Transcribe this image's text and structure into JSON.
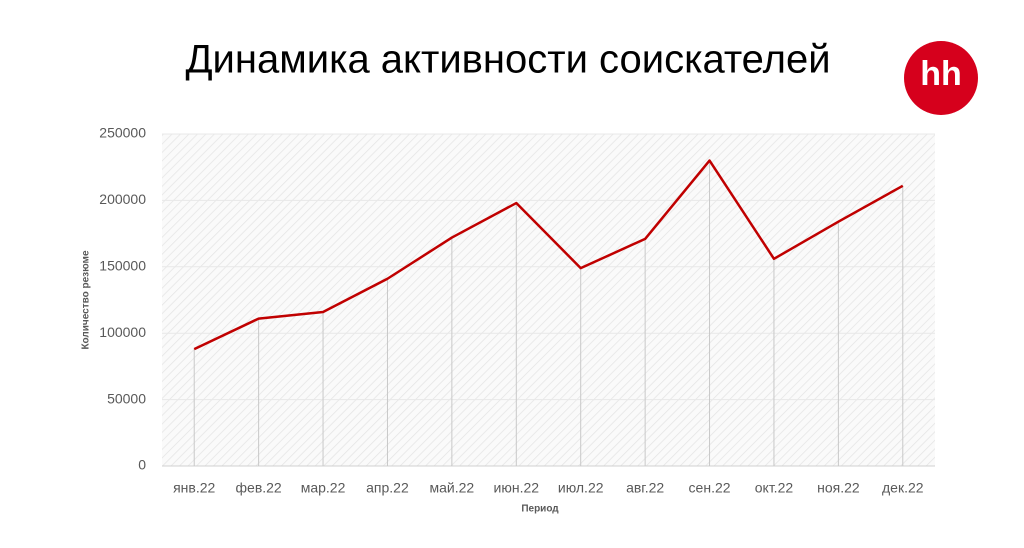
{
  "logo": "hh",
  "chart_data": {
    "type": "line",
    "title": "Динамика активности соискателей",
    "x_label": "Период",
    "y_label": "Количество резюме",
    "categories": [
      "янв.22",
      "фев.22",
      "мар.22",
      "апр.22",
      "май.22",
      "июн.22",
      "июл.22",
      "авг.22",
      "сен.22",
      "окт.22",
      "ноя.22",
      "дек.22"
    ],
    "values": [
      88000,
      111000,
      116000,
      141000,
      172000,
      198000,
      149000,
      171000,
      230000,
      156000,
      184000,
      211000
    ],
    "color": "#c00000",
    "ylim": [
      0,
      250000
    ],
    "yticks": [
      0,
      50000,
      100000,
      150000,
      200000,
      250000
    ],
    "grid": true
  }
}
